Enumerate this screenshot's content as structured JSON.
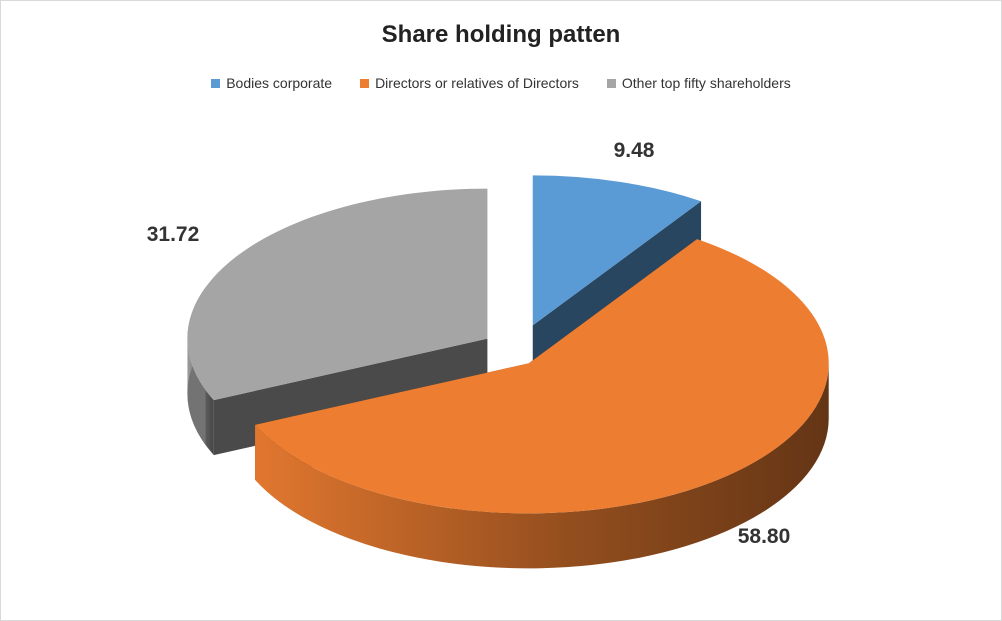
{
  "chart_data": {
    "type": "pie",
    "title": "Share holding patten",
    "legend_position": "top",
    "categories": [
      "Bodies corporate",
      "Directors or relatives of Directors",
      "Other top fifty shareholders"
    ],
    "values": [
      9.48,
      58.8,
      31.72
    ],
    "value_labels": [
      "9.48",
      "58.80",
      "31.72"
    ],
    "colors": [
      "#5b9bd5",
      "#ed7d31",
      "#a5a5a5"
    ],
    "exploded": true,
    "three_d": true
  }
}
